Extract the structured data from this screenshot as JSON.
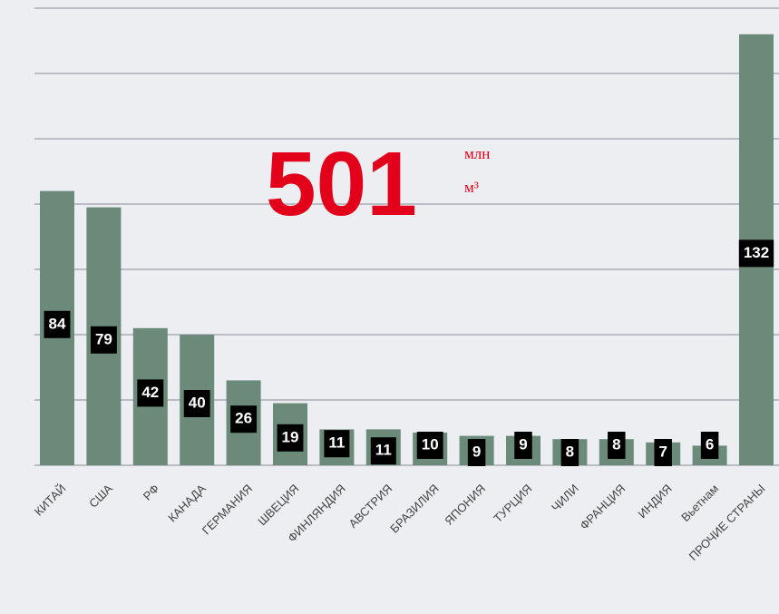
{
  "chart_data": {
    "type": "bar",
    "annotation": "501",
    "annotation_unit": [
      "млн",
      "м³"
    ],
    "categories": [
      "КИТАЙ",
      "США",
      "РФ",
      "КАНАДА",
      "ГЕРМАНИЯ",
      "ШВЕЦИЯ",
      "ФИНЛЯНДИЯ",
      "АВСТРИЯ",
      "БРАЗИЛИЯ",
      "ЯПОНИЯ",
      "ТУРЦИЯ",
      "ЧИЛИ",
      "ФРАНЦИЯ",
      "ИНДИЯ",
      "Вьетнам",
      "ПРОЧИЕ СТРАНЫ"
    ],
    "values": [
      84,
      79,
      42,
      40,
      26,
      19,
      11,
      11,
      10,
      9,
      9,
      8,
      8,
      7,
      6,
      132
    ],
    "color": "#6b8a79",
    "ylim": [
      0,
      140
    ],
    "yticks": [
      0,
      20,
      40,
      60,
      80,
      100,
      120,
      140
    ],
    "grid": true
  }
}
